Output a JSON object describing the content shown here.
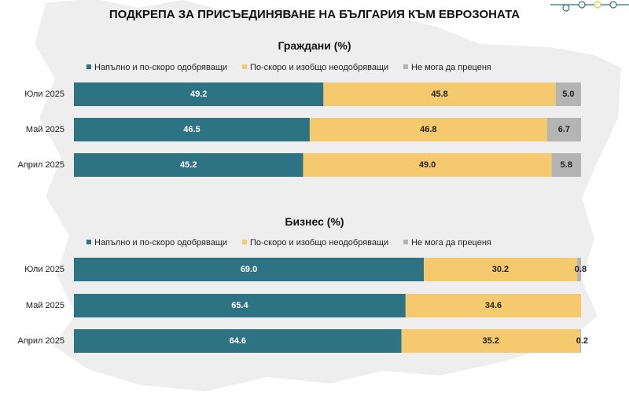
{
  "title": "ПОДКРЕПА ЗА ПРИСЪЕДИНЯВАНЕ НА БЪЛГАРИЯ КЪМ ЕВРОЗОНАТА",
  "colors": {
    "approve": "#2e7384",
    "disapprove": "#f5c96e",
    "undecided": "#b4b4b4",
    "map": "#eeeeee",
    "deco": "#2e7384",
    "deco_accent": "#c7d43b"
  },
  "chart_data": [
    {
      "type": "bar",
      "orientation": "horizontal",
      "stacked": true,
      "title": "Граждани (%)",
      "categories": [
        "Юли 2025",
        "Май 2025",
        "Април 2025"
      ],
      "series": [
        {
          "name": "Напълно и по-скоро одобряващи",
          "values": [
            49.2,
            46.5,
            45.2
          ],
          "labels": [
            "49.2",
            "46.5",
            "45.2"
          ]
        },
        {
          "name": "По-скоро и изобщо неодобряващи",
          "values": [
            45.8,
            46.8,
            49.0
          ],
          "labels": [
            "45.8",
            "46.8",
            "49.0"
          ]
        },
        {
          "name": "Не мога да преценя",
          "values": [
            5.0,
            6.7,
            5.8
          ],
          "labels": [
            "5.0",
            "6.7",
            "5.8"
          ]
        }
      ],
      "xlim": [
        0,
        100
      ],
      "legend_position": "top"
    },
    {
      "type": "bar",
      "orientation": "horizontal",
      "stacked": true,
      "title": "Бизнес (%)",
      "categories": [
        "Юли 2025",
        "Май 2025",
        "Април 2025"
      ],
      "series": [
        {
          "name": "Напълно и по-скоро одобряващи",
          "values": [
            69.0,
            65.4,
            64.6
          ],
          "labels": [
            "69.0",
            "65.4",
            "64.6"
          ]
        },
        {
          "name": "По-скоро и изобщо неодобряващи",
          "values": [
            30.2,
            34.6,
            35.2
          ],
          "labels": [
            "30.2",
            "34.6",
            "35.2"
          ]
        },
        {
          "name": "Не мога да преценя",
          "values": [
            0.8,
            0.0,
            0.2
          ],
          "labels": [
            "0.8",
            "",
            "0.2"
          ]
        }
      ],
      "xlim": [
        0,
        100
      ],
      "legend_position": "top"
    }
  ]
}
